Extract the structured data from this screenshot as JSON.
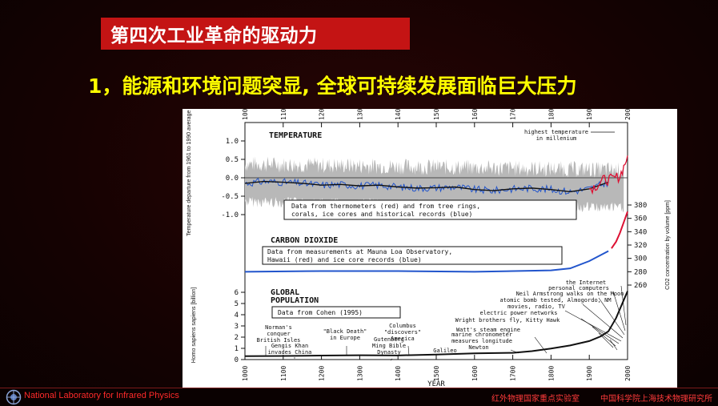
{
  "slide": {
    "title": "第四次工业革命的驱动力",
    "subtitle": "1，能源和环境问题突显, 全球可持续发展面临巨大压力"
  },
  "footer": {
    "lab_en": "National Laboratory for Infrared Physics",
    "lab_cn": "红外物理国家重点实验室",
    "institute_cn": "中国科学院上海技术物理研究所"
  },
  "colors": {
    "title_bg": "#c41414",
    "subtitle": "#ffff00",
    "footer_text": "#ff2a2a",
    "series_blue": "#2255cc",
    "series_red": "#dd1133"
  },
  "chart_data": {
    "type": "line",
    "x_axis": {
      "label": "YEAR",
      "range": [
        1000,
        2000
      ],
      "ticks": [
        "1000",
        "1100",
        "1200",
        "1300",
        "1400",
        "1500",
        "1600",
        "1700",
        "1800",
        "1900",
        "2000"
      ]
    },
    "panels": [
      {
        "title": "TEMPERATURE",
        "ylabel": "Temperature departure from 1961 to 1990 average [K]",
        "ylim": [
          -1.0,
          1.0
        ],
        "yticks": [
          "1.0",
          "0.5",
          "0.0",
          "-0.5",
          "-1.0"
        ],
        "annotation_top": "highest temperature in millenium",
        "note": "Data from thermometers (red) and from tree rings, corals, ice cores and historical records (blue)",
        "series": [
          {
            "color": "blue",
            "x": [
              1000,
              1050,
              1100,
              1150,
              1200,
              1250,
              1300,
              1350,
              1400,
              1450,
              1500,
              1550,
              1600,
              1650,
              1700,
              1750,
              1800,
              1850,
              1900,
              1950
            ],
            "values": [
              -0.15,
              -0.1,
              -0.12,
              -0.15,
              -0.2,
              -0.18,
              -0.22,
              -0.2,
              -0.25,
              -0.28,
              -0.27,
              -0.25,
              -0.32,
              -0.35,
              -0.3,
              -0.28,
              -0.32,
              -0.38,
              -0.3,
              -0.12
            ]
          },
          {
            "color": "red",
            "x": [
              1900,
              1920,
              1940,
              1960,
              1980,
              1990,
              2000
            ],
            "values": [
              -0.3,
              -0.2,
              -0.05,
              -0.05,
              0.05,
              0.3,
              0.6
            ]
          }
        ]
      },
      {
        "title": "CARBON DIOXIDE",
        "ylabel": "CO2 concentration by volume [ppm]",
        "ylim": [
          260,
          380
        ],
        "yticks": [
          "380",
          "360",
          "340",
          "320",
          "300",
          "280",
          "260"
        ],
        "note": "Data from measurements at Mauna Loa Observatory, Hawaii (red) and ice core records (blue)",
        "series": [
          {
            "color": "blue",
            "x": [
              1000,
              1200,
              1400,
              1600,
              1800,
              1850,
              1900,
              1950
            ],
            "values": [
              280,
              281,
              281,
              280,
              282,
              285,
              296,
              311
            ]
          },
          {
            "color": "red",
            "x": [
              1958,
              1970,
              1980,
              1990,
              2000
            ],
            "values": [
              315,
              325,
              338,
              354,
              370
            ]
          }
        ]
      },
      {
        "title": "GLOBAL POPULATION",
        "ylabel": "Homo sapiens sapiens [billion]",
        "ylim": [
          0,
          6
        ],
        "yticks": [
          "6",
          "5",
          "4",
          "3",
          "2",
          "1",
          "0"
        ],
        "note": "Data from Cohen (1995)",
        "series": [
          {
            "color": "black",
            "x": [
              1000,
              1100,
              1200,
              1300,
              1400,
              1500,
              1600,
              1700,
              1750,
              1800,
              1850,
              1900,
              1930,
              1950,
              1970,
              1990,
              2000
            ],
            "values": [
              0.3,
              0.32,
              0.36,
              0.38,
              0.37,
              0.45,
              0.55,
              0.6,
              0.75,
              0.98,
              1.26,
              1.65,
              2.07,
              2.52,
              3.7,
              5.3,
              6.1
            ]
          }
        ],
        "annotations": [
          {
            "lines": [
              "Norman's",
              "conquer",
              "British Isles"
            ]
          },
          {
            "lines": [
              "Gengis Khan",
              "invades China"
            ]
          },
          {
            "lines": [
              "\"Black Death\"",
              "in Europe"
            ]
          },
          {
            "lines": [
              "Gutenberg",
              "Ming  Bible",
              "Dynasty"
            ]
          },
          {
            "lines": [
              "Columbus",
              "\"discovers\"",
              "America"
            ]
          },
          {
            "lines": [
              "Galileo"
            ]
          },
          {
            "lines": [
              "Newton"
            ]
          },
          {
            "lines": [
              "marine chronometer",
              "measures longitude"
            ]
          },
          {
            "lines": [
              "Watt's steam engine"
            ]
          },
          {
            "lines": [
              "Wright brothers fly, Kitty Hawk"
            ]
          },
          {
            "lines": [
              "electric power networks"
            ]
          },
          {
            "lines": [
              "movies, radio, TV"
            ]
          },
          {
            "lines": [
              "atomic bomb tested, Almogordo, NM"
            ]
          },
          {
            "lines": [
              "Neil Armstrong walks on the Moon"
            ]
          },
          {
            "lines": [
              "personal computers"
            ]
          },
          {
            "lines": [
              "the Internet"
            ]
          }
        ]
      }
    ]
  }
}
